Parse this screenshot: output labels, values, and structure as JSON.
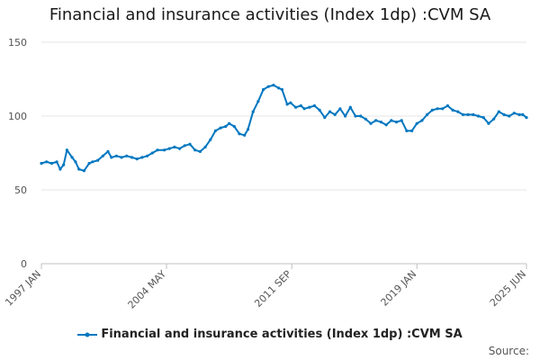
{
  "colors": {
    "series": "#0077c0",
    "grid": "#e6e6e6",
    "axis": "#c0c0c0"
  },
  "source_label": "Source:",
  "chart_data": {
    "type": "line",
    "title": "Financial and insurance activities (Index 1dp) :CVM SA",
    "xlabel": "",
    "ylabel": "",
    "ylim": [
      0,
      150
    ],
    "y_ticks": [
      0,
      50,
      100,
      150
    ],
    "x_range": [
      1997.0,
      2025.42
    ],
    "x_ticks": [
      {
        "label": "1997 JAN",
        "x": 1997.0
      },
      {
        "label": "2004 MAY",
        "x": 2004.33
      },
      {
        "label": "2011 SEP",
        "x": 2011.67
      },
      {
        "label": "2019 JAN",
        "x": 2019.0
      },
      {
        "label": "2025 JUN",
        "x": 2025.42
      }
    ],
    "grid": true,
    "legend_position": "bottom",
    "series": [
      {
        "name": "Financial and insurance activities (Index 1dp) :CVM SA",
        "x": [
          1997.0,
          1997.3,
          1997.6,
          1997.9,
          1998.1,
          1998.3,
          1998.5,
          1998.8,
          1999.0,
          1999.2,
          1999.5,
          1999.8,
          2000.0,
          2000.3,
          2000.6,
          2000.9,
          2001.1,
          2001.4,
          2001.7,
          2002.0,
          2002.3,
          2002.6,
          2002.9,
          2003.2,
          2003.5,
          2003.8,
          2004.2,
          2004.5,
          2004.8,
          2005.1,
          2005.4,
          2005.7,
          2006.0,
          2006.3,
          2006.6,
          2006.9,
          2007.2,
          2007.5,
          2007.8,
          2008.0,
          2008.3,
          2008.6,
          2008.9,
          2009.1,
          2009.4,
          2009.7,
          2010.0,
          2010.3,
          2010.6,
          2010.9,
          2011.1,
          2011.4,
          2011.6,
          2011.9,
          2012.2,
          2012.4,
          2012.7,
          2013.0,
          2013.3,
          2013.6,
          2013.9,
          2014.2,
          2014.5,
          2014.8,
          2015.1,
          2015.4,
          2015.7,
          2016.0,
          2016.3,
          2016.6,
          2016.9,
          2017.2,
          2017.5,
          2017.8,
          2018.1,
          2018.4,
          2018.7,
          2019.0,
          2019.3,
          2019.6,
          2019.9,
          2020.2,
          2020.5,
          2020.8,
          2021.1,
          2021.4,
          2021.7,
          2022.0,
          2022.3,
          2022.6,
          2022.9,
          2023.2,
          2023.5,
          2023.8,
          2024.1,
          2024.4,
          2024.7,
          2025.0,
          2025.2,
          2025.42
        ],
        "values": [
          68,
          69,
          68,
          69,
          64,
          67,
          77,
          72,
          69,
          64,
          63,
          68,
          69,
          70,
          73,
          76,
          72,
          73,
          72,
          73,
          72,
          71,
          72,
          73,
          75,
          77,
          77,
          78,
          79,
          78,
          80,
          81,
          77,
          76,
          79,
          84,
          90,
          92,
          93,
          95,
          93,
          88,
          87,
          91,
          103,
          110,
          118,
          120,
          121,
          119,
          118,
          108,
          109,
          106,
          107,
          105,
          106,
          107,
          104,
          99,
          103,
          101,
          105,
          100,
          106,
          100,
          100,
          98,
          95,
          97,
          96,
          94,
          97,
          96,
          97,
          90,
          90,
          95,
          97,
          101,
          104,
          105,
          105,
          107,
          104,
          103,
          101,
          101,
          101,
          100,
          99,
          95,
          98,
          103,
          101,
          100,
          102,
          101,
          101,
          99
        ]
      }
    ]
  }
}
